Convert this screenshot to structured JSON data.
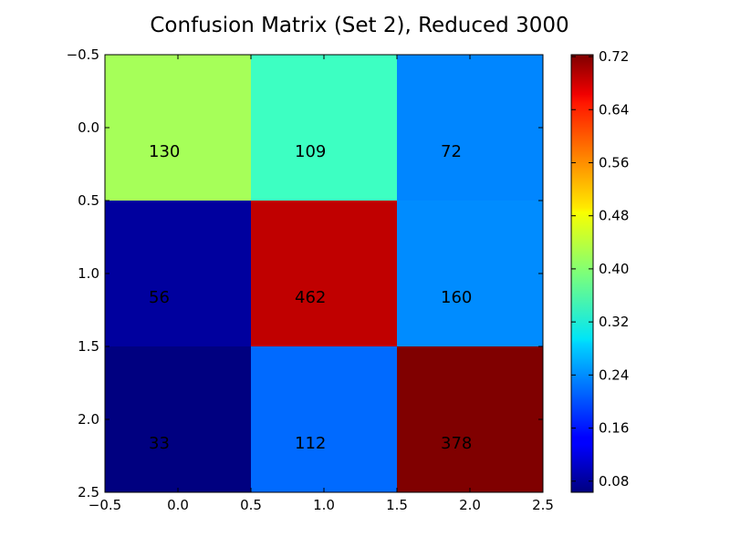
{
  "chart_data": {
    "type": "heatmap",
    "title": "Confusion Matrix (Set 2), Reduced 3000",
    "xlabel": "",
    "ylabel": "",
    "matrix": [
      [
        130,
        109,
        72
      ],
      [
        56,
        462,
        160
      ],
      [
        33,
        112,
        378
      ]
    ],
    "normalized": [
      [
        0.418,
        0.35,
        0.232
      ],
      [
        0.083,
        0.681,
        0.236
      ],
      [
        0.063,
        0.214,
        0.723
      ]
    ],
    "x_ticks": [
      "−0.5",
      "0.0",
      "0.5",
      "1.0",
      "1.5",
      "2.0",
      "2.5"
    ],
    "y_ticks": [
      "−0.5",
      "0.0",
      "0.5",
      "1.0",
      "1.5",
      "2.0",
      "2.5"
    ],
    "xlim": [
      -0.5,
      2.5
    ],
    "ylim": [
      2.5,
      -0.5
    ],
    "colormap": "jet",
    "colorbar": {
      "range": [
        0.0632,
        0.7228
      ],
      "ticks": [
        "0.08",
        "0.16",
        "0.24",
        "0.32",
        "0.40",
        "0.48",
        "0.56",
        "0.64",
        "0.72"
      ]
    },
    "grid": false,
    "legend": "none"
  }
}
